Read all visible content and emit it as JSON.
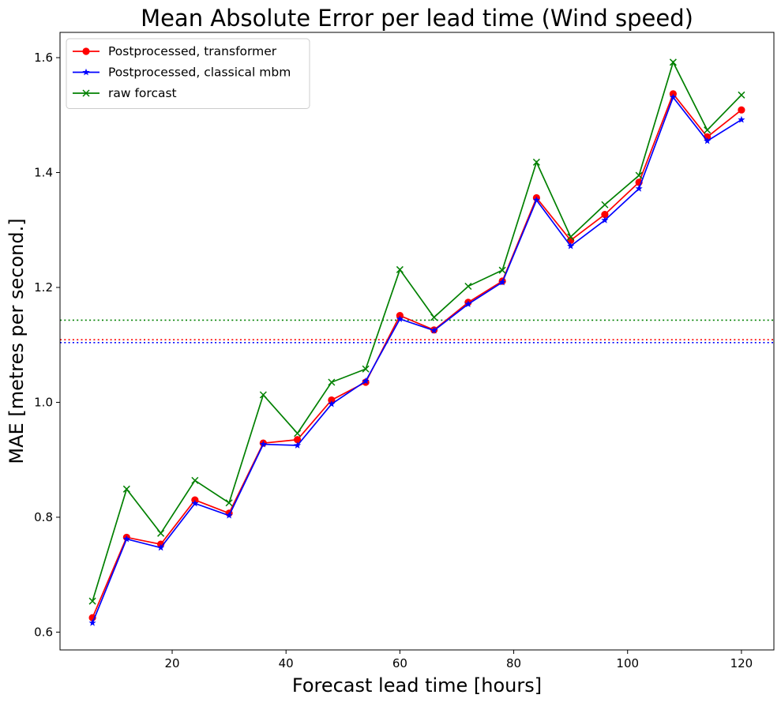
{
  "chart_data": {
    "type": "line",
    "title": "Mean Absolute Error per lead time (Wind speed)",
    "xlabel": "Forecast lead time [hours]",
    "ylabel": "MAE [metres per second.]",
    "xlim": [
      0.3,
      125.7
    ],
    "ylim": [
      0.569,
      1.644
    ],
    "xticks": [
      20,
      40,
      60,
      80,
      100,
      120
    ],
    "yticks": [
      0.6,
      0.8,
      1.0,
      1.2,
      1.4,
      1.6
    ],
    "xtick_labels": [
      "20",
      "40",
      "60",
      "80",
      "100",
      "120"
    ],
    "ytick_labels": [
      "0.6",
      "0.8",
      "1.0",
      "1.2",
      "1.4",
      "1.6"
    ],
    "grid": false,
    "legend_position": "top-left",
    "x": [
      6,
      12,
      18,
      24,
      30,
      36,
      42,
      48,
      54,
      60,
      66,
      72,
      78,
      84,
      90,
      96,
      102,
      108,
      114,
      120
    ],
    "series": [
      {
        "name": "Postprocessed, transformer",
        "color": "#ff0000",
        "marker": "circle",
        "values": [
          0.625,
          0.765,
          0.753,
          0.83,
          0.807,
          0.929,
          0.935,
          1.004,
          1.035,
          1.151,
          1.126,
          1.174,
          1.211,
          1.356,
          1.282,
          1.327,
          1.383,
          1.537,
          1.462,
          1.509
        ]
      },
      {
        "name": "Postprocessed, classical mbm",
        "color": "#0000ff",
        "marker": "star",
        "values": [
          0.616,
          0.762,
          0.747,
          0.824,
          0.803,
          0.927,
          0.925,
          0.997,
          1.037,
          1.145,
          1.125,
          1.171,
          1.209,
          1.352,
          1.272,
          1.317,
          1.372,
          1.531,
          1.455,
          1.492
        ]
      },
      {
        "name": "raw forcast",
        "color": "#008000",
        "marker": "x",
        "values": [
          0.654,
          0.849,
          0.772,
          0.864,
          0.825,
          1.013,
          0.946,
          1.035,
          1.058,
          1.231,
          1.148,
          1.202,
          1.23,
          1.418,
          1.288,
          1.344,
          1.395,
          1.592,
          1.474,
          1.535
        ]
      }
    ],
    "hlines": [
      {
        "y": 1.143,
        "color": "#008000",
        "style": "dotted"
      },
      {
        "y": 1.109,
        "color": "#ff0000",
        "style": "dotted"
      },
      {
        "y": 1.104,
        "color": "#0000ff",
        "style": "dotted"
      }
    ]
  }
}
